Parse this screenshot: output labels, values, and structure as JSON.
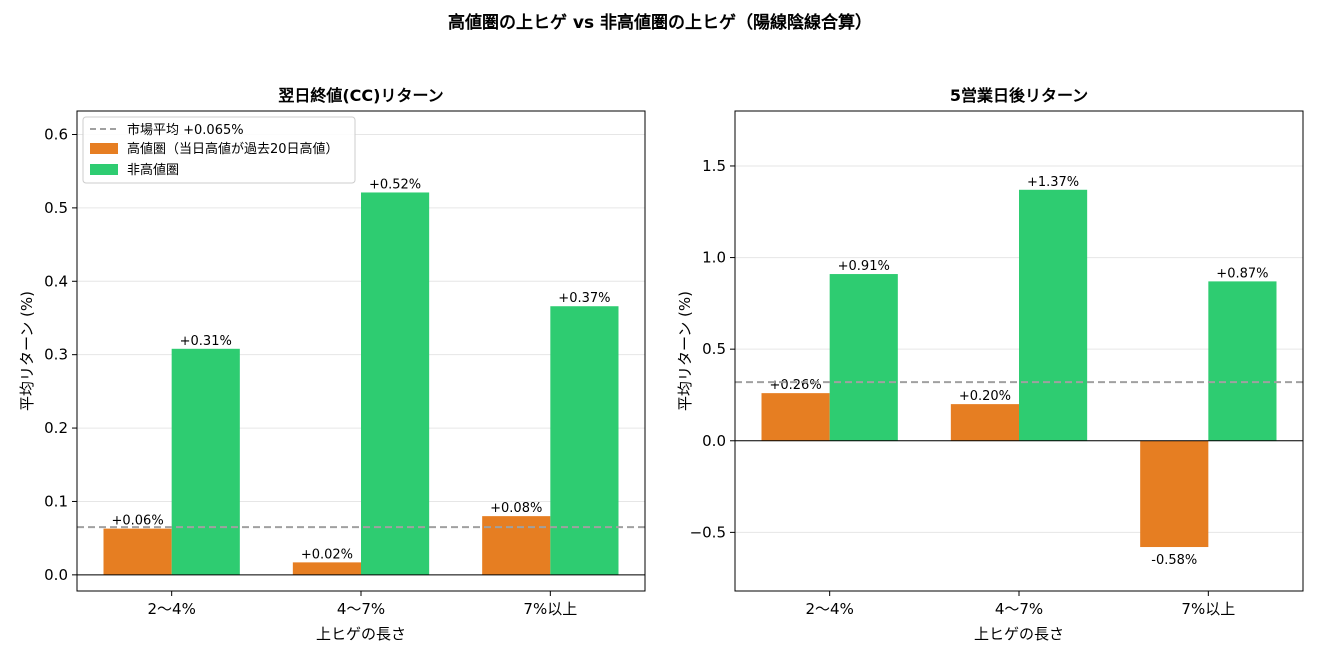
{
  "figure_title": "高値圏の上ヒゲ vs 非高値圏の上ヒゲ（陽線陰線合算）",
  "colors": {
    "high": "#e67e22",
    "nonhigh": "#2ecc71",
    "market": "#a0a0a0"
  },
  "chart_data": [
    {
      "type": "bar",
      "title": "翌日終値(CC)リターン",
      "xlabel": "上ヒゲの長さ",
      "ylabel": "平均リターン (%)",
      "categories": [
        "2〜4%",
        "4〜7%",
        "7%以上"
      ],
      "ylim": [
        -0.022,
        0.632
      ],
      "yticks": [
        0.0,
        0.1,
        0.2,
        0.3,
        0.4,
        0.5,
        0.6
      ],
      "ytick_labels": [
        "0.0",
        "0.1",
        "0.2",
        "0.3",
        "0.4",
        "0.5",
        "0.6"
      ],
      "grid": true,
      "legend_position": "top-left",
      "reference_line": {
        "label": "市場平均 +0.065%",
        "value": 0.065
      },
      "series": [
        {
          "name": "高値圏（当日高値が過去20日高値）",
          "values": [
            0.063,
            0.017,
            0.08
          ],
          "labels": [
            "+0.06%",
            "+0.02%",
            "+0.08%"
          ]
        },
        {
          "name": "非高値圏",
          "values": [
            0.308,
            0.521,
            0.366
          ],
          "labels": [
            "+0.31%",
            "+0.52%",
            "+0.37%"
          ]
        }
      ]
    },
    {
      "type": "bar",
      "title": "5営業日後リターン",
      "xlabel": "上ヒゲの長さ",
      "ylabel": "平均リターン (%)",
      "categories": [
        "2〜4%",
        "4〜7%",
        "7%以上"
      ],
      "ylim": [
        -0.82,
        1.8
      ],
      "yticks": [
        -0.5,
        0.0,
        0.5,
        1.0,
        1.5
      ],
      "ytick_labels": [
        "−0.5",
        "0.0",
        "0.5",
        "1.0",
        "1.5"
      ],
      "grid": true,
      "reference_line": {
        "value": 0.32
      },
      "series": [
        {
          "name": "高値圏（当日高値が過去20日高値）",
          "values": [
            0.26,
            0.2,
            -0.58
          ],
          "labels": [
            "+0.26%",
            "+0.20%",
            "-0.58%"
          ]
        },
        {
          "name": "非高値圏",
          "values": [
            0.91,
            1.37,
            0.87
          ],
          "labels": [
            "+0.91%",
            "+1.37%",
            "+0.87%"
          ]
        }
      ]
    }
  ]
}
